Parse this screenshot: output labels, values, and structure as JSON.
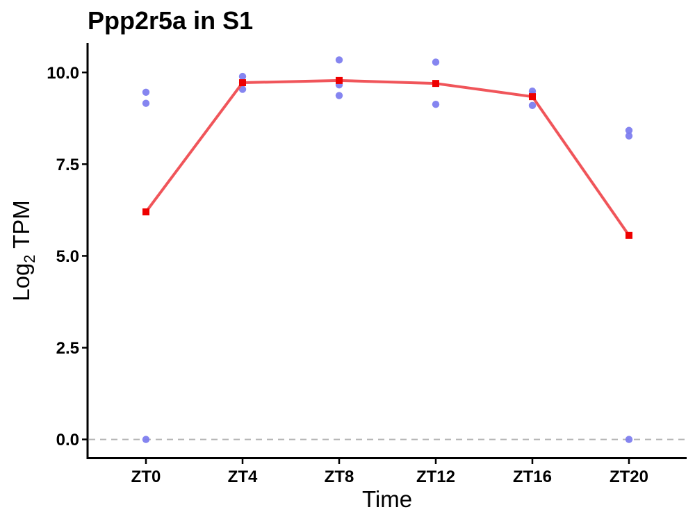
{
  "chart_data": {
    "type": "line",
    "title": "Ppp2r5a in S1",
    "xlabel": "Time",
    "ylabel": {
      "prefix": "Log",
      "subscript": "2",
      "suffix": " TPM"
    },
    "categories": [
      "ZT0",
      "ZT4",
      "ZT8",
      "ZT12",
      "ZT16",
      "ZT20"
    ],
    "ylim": [
      -0.5,
      10.8
    ],
    "yticks": [
      0,
      2.5,
      5,
      7.5,
      10
    ],
    "ytick_labels": [
      "0.0",
      "2.5",
      "5.0",
      "7.5",
      "10.0"
    ],
    "reference_line": {
      "y": 0,
      "style": "dashed",
      "color": "#b3b3b3"
    },
    "mean_series": {
      "values": [
        6.2,
        9.72,
        9.78,
        9.7,
        9.34,
        5.56
      ],
      "line_color": "#f0555a",
      "marker_color": "#ee0000",
      "marker": "square"
    },
    "replicate_points": {
      "color": "#7b7bef",
      "values": [
        [
          9.46,
          9.16,
          0.0
        ],
        [
          9.89,
          9.72,
          9.54
        ],
        [
          10.34,
          9.66,
          9.37
        ],
        [
          10.28,
          9.13
        ],
        [
          9.49,
          9.4,
          9.1
        ],
        [
          8.42,
          8.27,
          0.0
        ]
      ]
    },
    "grid": false,
    "legend": "none"
  }
}
